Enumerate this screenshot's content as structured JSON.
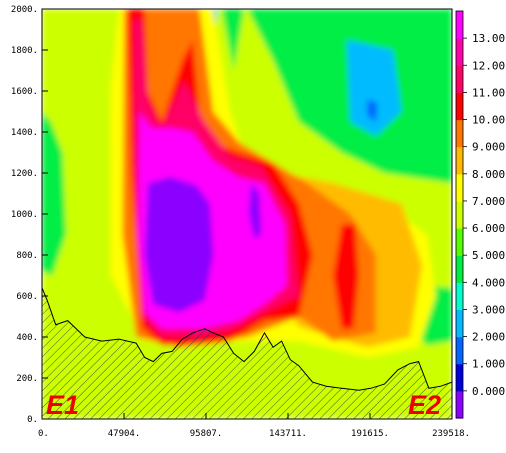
{
  "chart_data": {
    "type": "heatmap",
    "title": "",
    "xlabel": "",
    "ylabel": "",
    "xlim": [
      0,
      239518
    ],
    "ylim": [
      0,
      2000
    ],
    "x_tick_labels": [
      "0.",
      "47904.",
      "95807.",
      "143711.",
      "191615.",
      "239518."
    ],
    "x_tick_values": [
      0,
      47904,
      95807,
      143711,
      191615,
      239518
    ],
    "y_tick_labels": [
      "0.",
      "200.",
      "400.",
      "600.",
      "800.",
      "1000.",
      "1200.",
      "1400.",
      "1600.",
      "1800.",
      "2000."
    ],
    "y_tick_values": [
      0,
      200,
      400,
      600,
      800,
      1000,
      1200,
      1400,
      1600,
      1800,
      2000
    ],
    "colorbar": {
      "labels": [
        "0.000",
        "1.000",
        "2.000",
        "3.000",
        "4.000",
        "5.000",
        "6.000",
        "7.000",
        "8.000",
        "9.000",
        "10.00",
        "11.00",
        "12.00",
        "13.00"
      ],
      "label_values": [
        0,
        1,
        2,
        3,
        4,
        5,
        6,
        7,
        8,
        9,
        10,
        11,
        12,
        13
      ],
      "range": [
        -1,
        14
      ],
      "colors": [
        "#8b00ff",
        "#0000dd",
        "#0066ff",
        "#00bbff",
        "#00ffcc",
        "#00ee44",
        "#55ff00",
        "#ccff00",
        "#ffff00",
        "#ffbb00",
        "#ff7700",
        "#ff0000",
        "#ff0066",
        "#ff00aa",
        "#ff00ff"
      ]
    },
    "terrain_x": [
      0,
      3000,
      8000,
      15000,
      25000,
      35000,
      45000,
      55000,
      60000,
      65000,
      70000,
      76000,
      82000,
      88000,
      95000,
      100000,
      106000,
      112000,
      118000,
      124000,
      130000,
      135000,
      140000,
      145000,
      150000,
      158000,
      166000,
      175000,
      185000,
      192000,
      200000,
      208000,
      215000,
      220000,
      226000,
      233000,
      239518
    ],
    "terrain_y": [
      640,
      580,
      460,
      480,
      400,
      380,
      390,
      370,
      300,
      280,
      320,
      330,
      390,
      420,
      440,
      420,
      400,
      320,
      280,
      330,
      420,
      350,
      380,
      290,
      260,
      180,
      160,
      150,
      140,
      150,
      170,
      240,
      270,
      280,
      150,
      160,
      180
    ],
    "annotations": [
      "E1",
      "E2"
    ]
  }
}
